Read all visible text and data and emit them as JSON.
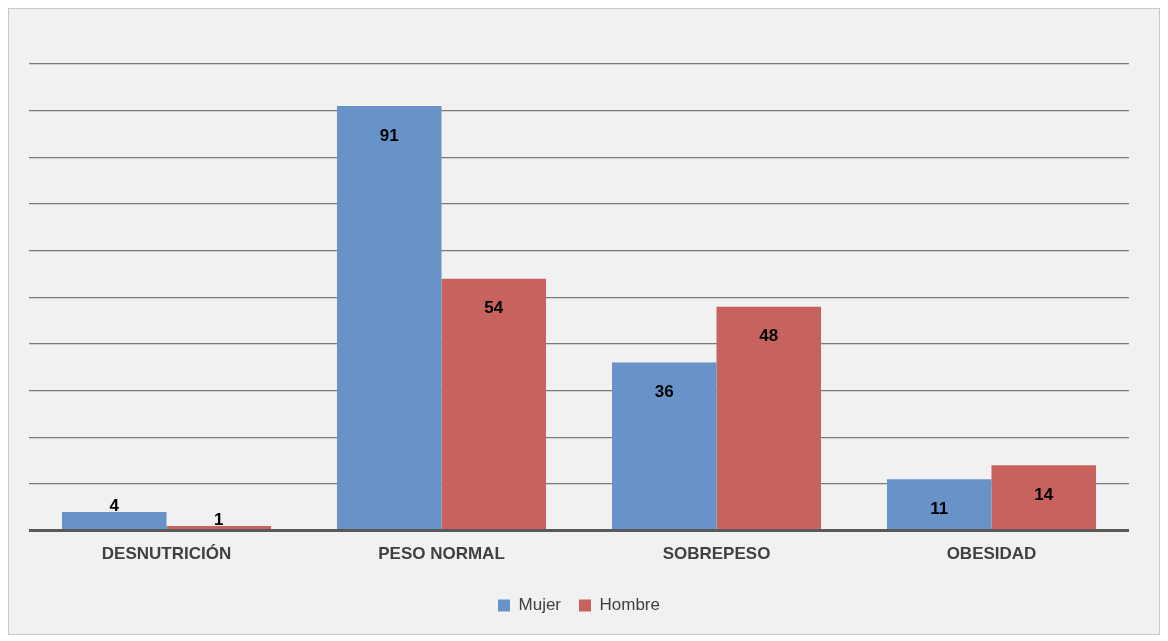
{
  "chart_data": {
    "type": "bar",
    "categories": [
      "DESNUTRICIÓN",
      "PESO NORMAL",
      "SOBREPESO",
      "OBESIDAD"
    ],
    "series": [
      {
        "name": "Mujer",
        "color": "#6793c9",
        "values": [
          4,
          91,
          36,
          11
        ]
      },
      {
        "name": "Hombre",
        "color": "#c8625f",
        "values": [
          1,
          54,
          48,
          14
        ]
      }
    ],
    "tick_labels": "x",
    "grid": "y",
    "legend": "bottom",
    "data_labels": true
  }
}
